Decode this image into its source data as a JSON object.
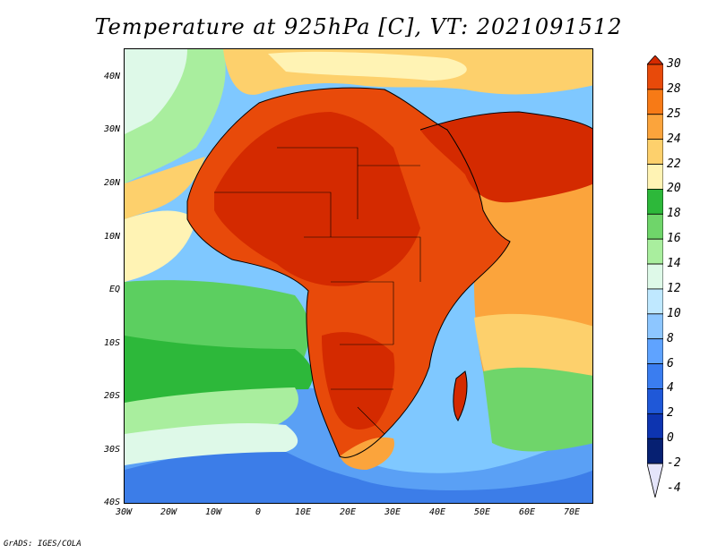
{
  "title": "Temperature at 925hPa [C], VT: 2021091512",
  "credit": "GrADS: IGES/COLA",
  "axes": {
    "lat_labels": [
      "40N",
      "30N",
      "20N",
      "10N",
      "EQ",
      "10S",
      "20S",
      "30S",
      "40S"
    ],
    "lon_labels": [
      "30W",
      "20W",
      "10W",
      "0",
      "10E",
      "20E",
      "30E",
      "40E",
      "50E",
      "60E",
      "70E"
    ]
  },
  "colorbar": {
    "labels": [
      "30",
      "28",
      "25",
      "24",
      "22",
      "20",
      "18",
      "16",
      "14",
      "12",
      "10",
      "8",
      "6",
      "4",
      "2",
      "0",
      "-2",
      "-4"
    ],
    "colors": [
      "#d42a00",
      "#e84a0a",
      "#f77a16",
      "#fba43c",
      "#fdd06c",
      "#fff3b4",
      "#2db83a",
      "#6fd56a",
      "#a9ee9e",
      "#def9e8",
      "#bfe8ff",
      "#8dc6ff",
      "#5fa3ff",
      "#3a7df0",
      "#1f58d8",
      "#0d34b0",
      "#062072",
      "#e4e4fa"
    ]
  },
  "chart_data": {
    "type": "heatmap",
    "title": "Temperature at 925hPa [C], VT: 2021091512",
    "x_range": [
      -30,
      75
    ],
    "y_range": [
      -40,
      45
    ],
    "x_ticks": [
      "30W",
      "20W",
      "10W",
      "0",
      "10E",
      "20E",
      "30E",
      "40E",
      "50E",
      "60E",
      "70E"
    ],
    "y_ticks": [
      "40N",
      "30N",
      "20N",
      "10N",
      "EQ",
      "10S",
      "20S",
      "30S",
      "40S"
    ],
    "colorbar_levels": [
      -4,
      -2,
      0,
      2,
      4,
      6,
      8,
      10,
      12,
      14,
      16,
      18,
      20,
      22,
      24,
      25,
      28,
      30
    ]
  }
}
